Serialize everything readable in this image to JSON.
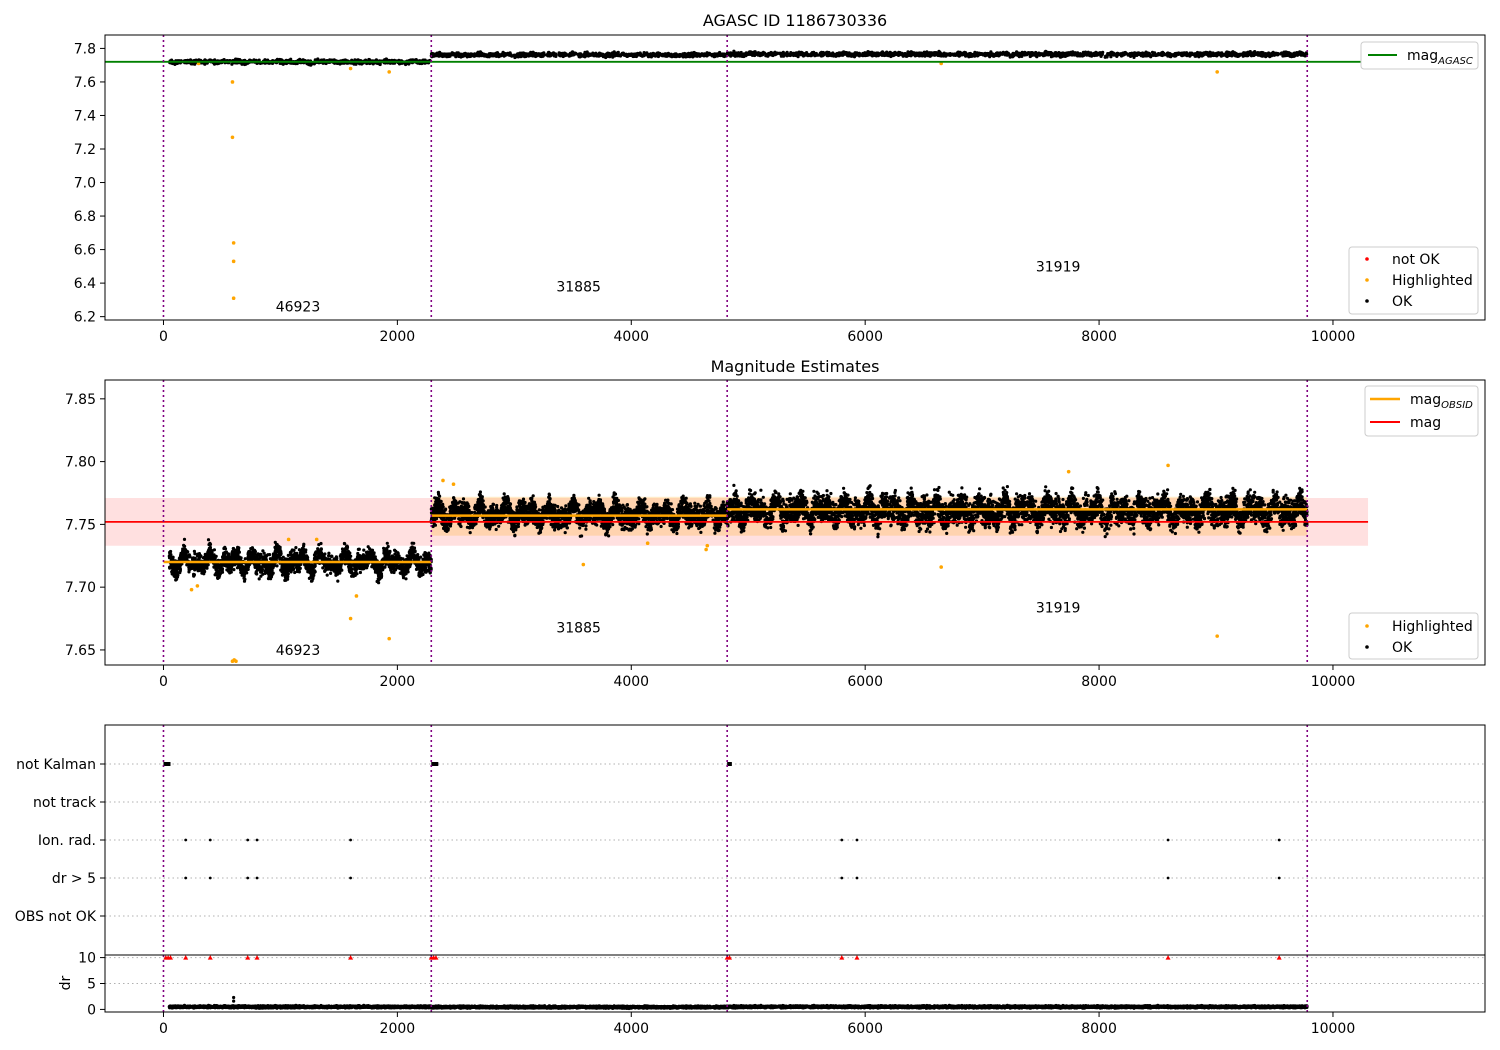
{
  "chart_data": [
    {
      "type": "scatter",
      "title": "AGASC ID 1186730336",
      "xlim": [
        -500,
        11300
      ],
      "ylim": [
        6.18,
        7.88
      ],
      "xticks": [
        0,
        2000,
        4000,
        6000,
        8000,
        10000
      ],
      "yticks": [
        6.2,
        6.4,
        6.6,
        6.8,
        7.0,
        7.2,
        7.4,
        7.6,
        7.8
      ],
      "ytick_labels": [
        "6.2",
        "6.4",
        "6.6",
        "6.8",
        "7.0",
        "7.2",
        "7.4",
        "7.6",
        "7.8"
      ],
      "observation_boundaries": [
        0,
        2290,
        4820,
        9780
      ],
      "observation_labels": [
        {
          "text": "46923",
          "x": 1150,
          "y": 6.23
        },
        {
          "text": "31885",
          "x": 3550,
          "y": 6.35
        },
        {
          "text": "31919",
          "x": 7650,
          "y": 6.47
        }
      ],
      "lines": [
        {
          "name": "mag_AGASC",
          "y": 7.72,
          "x": [
            -500,
            10300
          ],
          "color": "#008000"
        }
      ],
      "segments": [
        {
          "x0": 50,
          "x1": 2290,
          "center": 7.72,
          "spread": 0.012
        },
        {
          "x0": 2290,
          "x1": 4820,
          "center": 7.762,
          "spread": 0.012
        },
        {
          "x0": 4820,
          "x1": 9780,
          "center": 7.765,
          "spread": 0.012
        }
      ],
      "highlighted_points": [
        {
          "x": 590,
          "y": 7.6
        },
        {
          "x": 590,
          "y": 7.27
        },
        {
          "x": 600,
          "y": 6.64
        },
        {
          "x": 600,
          "y": 6.53
        },
        {
          "x": 600,
          "y": 6.31
        },
        {
          "x": 1600,
          "y": 7.68
        },
        {
          "x": 1930,
          "y": 7.66
        },
        {
          "x": 9010,
          "y": 7.66
        },
        {
          "x": 300,
          "y": 7.71
        },
        {
          "x": 6650,
          "y": 7.71
        }
      ],
      "legends": {
        "lines": [
          "mag_AGASC"
        ],
        "points": [
          {
            "label": "not OK",
            "color": "#ff0000"
          },
          {
            "label": "Highlighted",
            "color": "#ffa500"
          },
          {
            "label": "OK",
            "color": "#000000"
          }
        ]
      }
    },
    {
      "type": "scatter",
      "title": "Magnitude Estimates",
      "xlim": [
        -500,
        11300
      ],
      "ylim": [
        7.638,
        7.865
      ],
      "xticks": [
        0,
        2000,
        4000,
        6000,
        8000,
        10000
      ],
      "yticks": [
        7.65,
        7.7,
        7.75,
        7.8,
        7.85
      ],
      "ytick_labels": [
        "7.65",
        "7.70",
        "7.75",
        "7.80",
        "7.85"
      ],
      "observation_boundaries": [
        0,
        2290,
        4820,
        9780
      ],
      "observation_labels": [
        {
          "text": "46923",
          "x": 1150,
          "y": 7.646
        },
        {
          "text": "31885",
          "x": 3550,
          "y": 7.664
        },
        {
          "text": "31919",
          "x": 7650,
          "y": 7.68
        }
      ],
      "mag": {
        "value": 7.752,
        "band": [
          7.733,
          7.771
        ],
        "x": [
          -500,
          10300
        ]
      },
      "mag_obsid": [
        {
          "x0": 0,
          "x1": 2290,
          "y": 7.72
        },
        {
          "x0": 2290,
          "x1": 4820,
          "y": 7.757
        },
        {
          "x0": 4820,
          "x1": 9780,
          "y": 7.762
        }
      ],
      "mag_obsid_band": [
        {
          "x0": 2290,
          "x1": 9780,
          "y0": 7.741,
          "y1": 7.772
        }
      ],
      "segments": [
        {
          "x0": 50,
          "x1": 2290,
          "center": 7.72,
          "spread": 0.008
        },
        {
          "x0": 2290,
          "x1": 4820,
          "center": 7.758,
          "spread": 0.009
        },
        {
          "x0": 4820,
          "x1": 9780,
          "center": 7.761,
          "spread": 0.011
        }
      ],
      "highlighted_points": [
        {
          "x": 240,
          "y": 7.698
        },
        {
          "x": 290,
          "y": 7.701
        },
        {
          "x": 590,
          "y": 7.641
        },
        {
          "x": 605,
          "y": 7.642
        },
        {
          "x": 620,
          "y": 7.641
        },
        {
          "x": 1600,
          "y": 7.675
        },
        {
          "x": 1650,
          "y": 7.693
        },
        {
          "x": 1930,
          "y": 7.659
        },
        {
          "x": 1070,
          "y": 7.738
        },
        {
          "x": 1310,
          "y": 7.738
        },
        {
          "x": 2390,
          "y": 7.785
        },
        {
          "x": 2480,
          "y": 7.782
        },
        {
          "x": 3590,
          "y": 7.718
        },
        {
          "x": 4140,
          "y": 7.735
        },
        {
          "x": 4640,
          "y": 7.73
        },
        {
          "x": 4650,
          "y": 7.733
        },
        {
          "x": 6650,
          "y": 7.716
        },
        {
          "x": 7740,
          "y": 7.792
        },
        {
          "x": 8590,
          "y": 7.797
        },
        {
          "x": 9010,
          "y": 7.661
        }
      ],
      "legends": {
        "lines": [
          {
            "label": "mag_OBSID",
            "color": "#ffa500"
          },
          {
            "label": "mag",
            "color": "#ff0000"
          }
        ],
        "points": [
          {
            "label": "Highlighted",
            "color": "#ffa500"
          },
          {
            "label": "OK",
            "color": "#000000"
          }
        ]
      }
    },
    {
      "type": "scatter",
      "title": "",
      "xlim": [
        -500,
        11300
      ],
      "categories": [
        "not Kalman",
        "not track",
        "Ion. rad.",
        "dr > 5",
        "OBS not OK"
      ],
      "observation_boundaries": [
        0,
        2290,
        4820,
        9780
      ],
      "flag_runs": [
        {
          "category": "not Kalman",
          "x0": 0,
          "x1": 60
        },
        {
          "category": "not Kalman",
          "x0": 2290,
          "x1": 2350
        },
        {
          "category": "not Kalman",
          "x0": 4820,
          "x1": 4860
        }
      ],
      "flag_points": {
        "Ion. rad.": [
          190,
          400,
          720,
          800,
          1600,
          5800,
          5930,
          8590,
          9540
        ],
        "dr > 5": [
          190,
          400,
          720,
          800,
          1600,
          5800,
          5930,
          8590,
          9540
        ]
      },
      "dr": {
        "ylim": [
          -0.5,
          10.5
        ],
        "yticks": [
          0,
          5,
          10
        ],
        "ytick_labels": [
          "0",
          "5",
          "10"
        ],
        "ylabel": "dr",
        "clipped_points_x": [
          20,
          40,
          60,
          190,
          400,
          720,
          800,
          1600,
          2290,
          2310,
          2330,
          4820,
          4840,
          5800,
          5930,
          8590,
          9540
        ],
        "clip_value": 10,
        "segments": [
          {
            "x0": 50,
            "x1": 2290,
            "center": 0.5,
            "spread": 0.2
          },
          {
            "x0": 2290,
            "x1": 4820,
            "center": 0.45,
            "spread": 0.2
          },
          {
            "x0": 4820,
            "x1": 9780,
            "center": 0.5,
            "spread": 0.2
          }
        ],
        "outliers": [
          {
            "x": 600,
            "y": 2.3
          },
          {
            "x": 600,
            "y": 1.6
          }
        ]
      }
    }
  ]
}
